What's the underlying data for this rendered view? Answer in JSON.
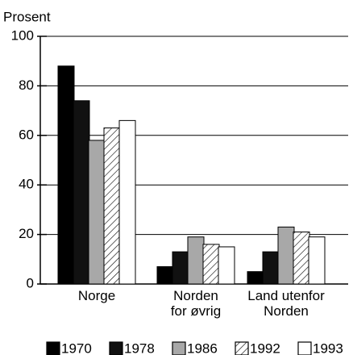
{
  "chart_data": {
    "type": "bar",
    "y_label": "Prosent",
    "categories": [
      "Norge",
      "Norden for øvrig",
      "Land utenfor Norden"
    ],
    "series": [
      {
        "name": "1970",
        "color": "#000000",
        "values": [
          88,
          7,
          5
        ]
      },
      {
        "name": "1978",
        "color": "#111111",
        "values": [
          74,
          13,
          13
        ]
      },
      {
        "name": "1986",
        "color": "#a8a8a8",
        "values": [
          58,
          19,
          23
        ]
      },
      {
        "name": "1992",
        "color": "#ffffff",
        "pattern": "hatch",
        "values": [
          63,
          16,
          21
        ]
      },
      {
        "name": "1993",
        "color": "#ffffff",
        "values": [
          66,
          15,
          19
        ]
      }
    ],
    "ylim": [
      0,
      100
    ],
    "yticks": [
      0,
      20,
      40,
      60,
      80,
      100
    ],
    "grid": true,
    "legend": "bottom"
  }
}
